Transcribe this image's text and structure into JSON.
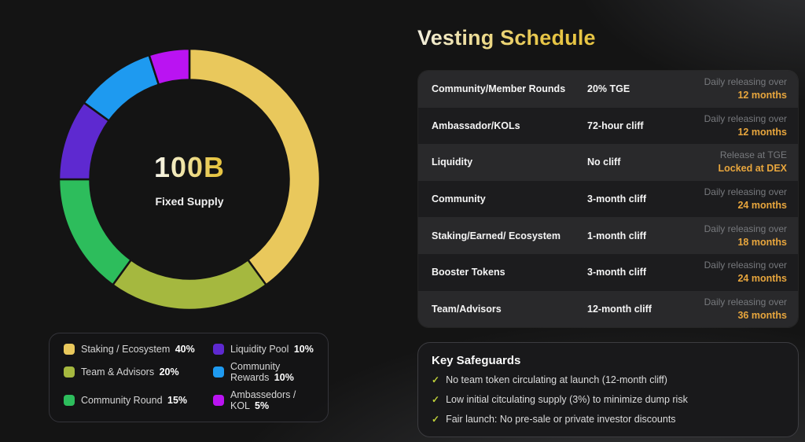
{
  "donut": {
    "center_value": "100B",
    "center_label": "Fixed Supply"
  },
  "chart_data": {
    "type": "pie",
    "donut": true,
    "title": "100B Fixed Supply",
    "start_angle_deg": 0,
    "direction": "clockwise",
    "labels": [
      "Staking / Ecosystem",
      "Team & Advisors",
      "Community Round",
      "Liquidity Pool",
      "Community Rewards",
      "Ambassedors / KOL"
    ],
    "values": [
      40,
      20,
      15,
      10,
      10,
      5
    ],
    "colors": [
      "#e9c85c",
      "#a5b83f",
      "#2dbd5c",
      "#5e29d0",
      "#1e9af0",
      "#ba13f2"
    ],
    "gap_color": "#141414"
  },
  "legend": {
    "items": [
      {
        "label": "Staking / Ecosystem",
        "pct": "40%",
        "color": "#e9c85c"
      },
      {
        "label": "Team & Advisors",
        "pct": "20%",
        "color": "#a5b83f"
      },
      {
        "label": "Community Round",
        "pct": "15%",
        "color": "#2dbd5c"
      },
      {
        "label": "Liquidity Pool",
        "pct": "10%",
        "color": "#5e29d0"
      },
      {
        "label": "Community Rewards",
        "pct": "10%",
        "color": "#1e9af0"
      },
      {
        "label": "Ambassedors / KOL",
        "pct": "5%",
        "color": "#ba13f2"
      }
    ]
  },
  "vesting": {
    "title": "Vesting Schedule",
    "accent_color": "#e8a63d",
    "rows": [
      {
        "name": "Community/Member Rounds",
        "cliff": "20% TGE",
        "note_top": "Daily releasing over",
        "note_bottom": "12 months"
      },
      {
        "name": "Ambassador/KOLs",
        "cliff": "72-hour cliff",
        "note_top": "Daily releasing over",
        "note_bottom": "12 months"
      },
      {
        "name": "Liquidity",
        "cliff": "No cliff",
        "note_top": "Release at TGE",
        "note_bottom": "Locked at DEX"
      },
      {
        "name": "Community",
        "cliff": "3-month cliff",
        "note_top": "Daily releasing over",
        "note_bottom": "24 months"
      },
      {
        "name": "Staking/Earned/ Ecosystem",
        "cliff": "1-month cliff",
        "note_top": "Daily releasing over",
        "note_bottom": "18 months"
      },
      {
        "name": "Booster Tokens",
        "cliff": "3-month cliff",
        "note_top": "Daily releasing over",
        "note_bottom": "24 months"
      },
      {
        "name": "Team/Advisors",
        "cliff": "12-month cliff",
        "note_top": "Daily releasing over",
        "note_bottom": "36 months"
      }
    ]
  },
  "safeguards": {
    "title": "Key Safeguards",
    "check_color": "#bdcf39",
    "items": [
      "No team token circulating at launch (12-month cliff)",
      "Low initial citculating supply (3%) to minimize dump risk",
      "Fair launch: No pre-sale or private investor discounts"
    ]
  }
}
